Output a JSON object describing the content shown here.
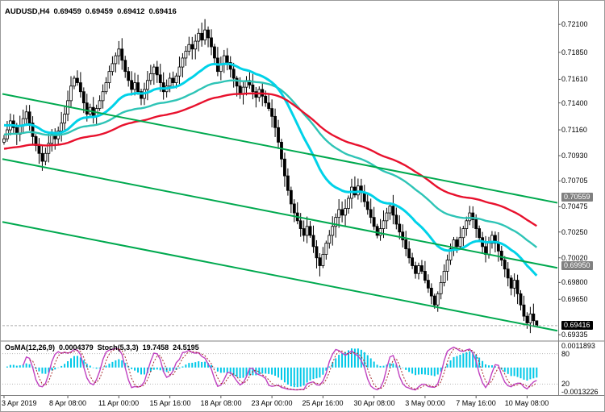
{
  "readout": {
    "symbol_period": "AUDUSD,H4",
    "open": "0.69459",
    "high": "0.69459",
    "low": "0.69412",
    "close": "0.69416"
  },
  "indicator_label": {
    "osma_name": "OsMA(12,26,9)",
    "osma_value": "0.0004379",
    "stoch_name": "Stoch(5,3,3)",
    "stoch_k": "19.7458",
    "stoch_d": "24.5195"
  },
  "price_axis": {
    "ticks": [
      "0.72100",
      "0.71850",
      "0.71610",
      "0.71400",
      "0.71160",
      "0.70930",
      "0.70705",
      "0.70475",
      "0.70250",
      "0.70020",
      "0.69800",
      "0.69650",
      "0.69335"
    ],
    "boxed": [
      {
        "label": "0.70559",
        "bg": "#808080",
        "fg": "#ffffff",
        "role": "level-marker"
      },
      {
        "label": "0.69950",
        "bg": "#808080",
        "fg": "#ffffff",
        "role": "level-marker"
      },
      {
        "label": "0.69416",
        "bg": "#000000",
        "fg": "#ffffff",
        "role": "current-price"
      }
    ]
  },
  "time_axis": {
    "labels": [
      {
        "text": "3 Apr 2019",
        "index": 0,
        "align": "left"
      },
      {
        "text": "8 Apr 08:00",
        "index": 20
      },
      {
        "text": "11 Apr 00:00",
        "index": 36
      },
      {
        "text": "15 Apr 16:00",
        "index": 52
      },
      {
        "text": "18 Apr 08:00",
        "index": 68
      },
      {
        "text": "23 Apr 00:00",
        "index": 84
      },
      {
        "text": "25 Apr 16:00",
        "index": 100
      },
      {
        "text": "30 Apr 08:00",
        "index": 116
      },
      {
        "text": "3 May 00:00",
        "index": 132
      },
      {
        "text": "7 May 16:00",
        "index": 148
      },
      {
        "text": "10 May 08:00",
        "index": 164
      }
    ]
  },
  "indicator_axis": {
    "osma_max": "0.0011893",
    "level_high": "80",
    "level_low": "20",
    "osma_min": "-0.0013226"
  },
  "colors": {
    "background": "#ffffff",
    "candle_up_fill": "#ffffff",
    "candle_down_fill": "#000000",
    "candle_outline": "#000000",
    "ma_fast": "#00D2E8",
    "ma_mid": "#2EC4B6",
    "ma_slow": "#E8112D",
    "trendline": "#00A94F",
    "osma_bar": "#00C8E8",
    "stoch_main": "#C040C0",
    "stoch_signal": "#A52A2A",
    "grid_line": "#B8B8B8",
    "separator": "#808080",
    "bid_line": "#aaaaaa"
  },
  "chart_data": {
    "type": "candlestick",
    "symbol": "AUDUSD",
    "timeframe": "H4",
    "ohlc_current": {
      "open": 0.69459,
      "high": 0.69459,
      "low": 0.69412,
      "close": 0.69416
    },
    "price_range": {
      "top": 0.72245,
      "bottom": 0.693
    },
    "first_open": 0.7105,
    "closes": [
      0.7108,
      0.7116,
      0.7124,
      0.7118,
      0.7112,
      0.712,
      0.7126,
      0.7132,
      0.7122,
      0.711,
      0.7102,
      0.7095,
      0.7088,
      0.7095,
      0.7104,
      0.7112,
      0.7108,
      0.7115,
      0.7122,
      0.713,
      0.7142,
      0.7155,
      0.7162,
      0.7158,
      0.715,
      0.714,
      0.713,
      0.7136,
      0.7128,
      0.7135,
      0.7142,
      0.715,
      0.7158,
      0.7168,
      0.7175,
      0.7182,
      0.7188,
      0.7178,
      0.7168,
      0.716,
      0.7152,
      0.7158,
      0.715,
      0.7144,
      0.7152,
      0.716,
      0.7166,
      0.7172,
      0.7165,
      0.7158,
      0.715,
      0.7155,
      0.7162,
      0.7158,
      0.7164,
      0.7172,
      0.718,
      0.7186,
      0.7192,
      0.7188,
      0.7195,
      0.7202,
      0.7196,
      0.7205,
      0.7198,
      0.719,
      0.718,
      0.7168,
      0.7175,
      0.7182,
      0.7176,
      0.717,
      0.7162,
      0.7155,
      0.7148,
      0.7154,
      0.716,
      0.7156,
      0.715,
      0.7145,
      0.7152,
      0.7146,
      0.714,
      0.7135,
      0.7128,
      0.7118,
      0.7105,
      0.709,
      0.7075,
      0.7062,
      0.705,
      0.7042,
      0.7035,
      0.7028,
      0.7022,
      0.703,
      0.7022,
      0.7012,
      0.7002,
      0.6995,
      0.7005,
      0.7015,
      0.7022,
      0.703,
      0.7038,
      0.7045,
      0.704,
      0.7046,
      0.7055,
      0.7065,
      0.7058,
      0.7066,
      0.706,
      0.7052,
      0.7045,
      0.7038,
      0.703,
      0.7022,
      0.7028,
      0.7035,
      0.7042,
      0.7048,
      0.704,
      0.7032,
      0.7025,
      0.7018,
      0.701,
      0.7002,
      0.6995,
      0.6988,
      0.6995,
      0.699,
      0.6982,
      0.6975,
      0.6968,
      0.696,
      0.697,
      0.698,
      0.699,
      0.7,
      0.701,
      0.7018,
      0.7012,
      0.702,
      0.7028,
      0.7035,
      0.7042,
      0.7036,
      0.7028,
      0.702,
      0.7012,
      0.7005,
      0.7015,
      0.7022,
      0.7015,
      0.7008,
      0.7,
      0.6992,
      0.6984,
      0.6975,
      0.6982,
      0.697,
      0.696,
      0.695,
      0.6944,
      0.6952,
      0.6946,
      0.69416
    ],
    "last_candle": {
      "o": 0.69459,
      "h": 0.69459,
      "l": 0.69412,
      "c": 0.69416
    },
    "moving_averages": [
      {
        "name": "ma-mid-teal",
        "period": 64,
        "seed": 0.7112,
        "color": "#2EC4B6",
        "width": 2.4
      },
      {
        "name": "ma-fast-cyan",
        "period": 30,
        "seed": 0.7121,
        "color": "#00D2E8",
        "width": 3
      },
      {
        "name": "ma-slow-red",
        "period": 96,
        "seed": 0.7099,
        "color": "#E8112D",
        "width": 2.4
      }
    ],
    "trendlines": [
      {
        "name": "channel-upper",
        "price_left": 0.7148,
        "price_right": 0.7051,
        "color": "#00A94F"
      },
      {
        "name": "channel-mid",
        "price_left": 0.709,
        "price_right": 0.6993,
        "color": "#00A94F"
      },
      {
        "name": "channel-lower",
        "price_left": 0.7034,
        "price_right": 0.6937,
        "color": "#00A94F"
      }
    ],
    "indicators": {
      "osma": {
        "fast": 12,
        "slow": 26,
        "signal": 9,
        "value": 0.0004379,
        "color": "#00C8E8"
      },
      "stochastic": {
        "k": 5,
        "slowing": 3,
        "d": 3,
        "k_value": 19.7458,
        "d_value": 24.5195,
        "main_color": "#C040C0",
        "signal_color": "#A52A2A",
        "levels": [
          20,
          80
        ]
      }
    }
  }
}
